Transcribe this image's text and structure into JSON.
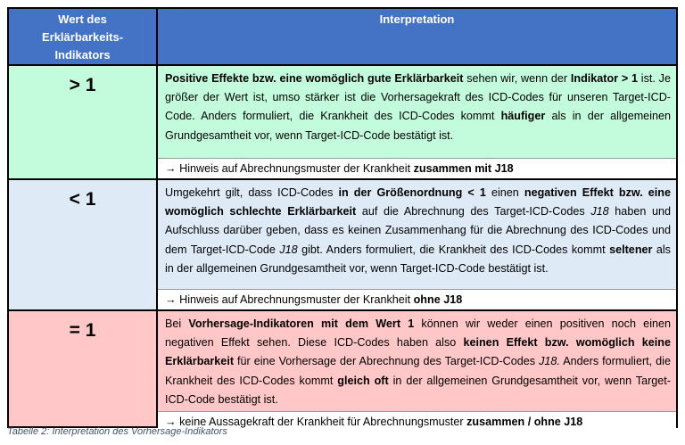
{
  "table": {
    "headers": [
      "Wert des Erklärbarkeits-Indikators",
      "Interpretation"
    ],
    "colors": {
      "header": "#4472C4",
      "positive": "#C3FCDC",
      "negative": "#DEEAF6",
      "neutral": "#FFC7C7"
    },
    "rows": [
      {
        "value": "> 1",
        "text": [
          {
            "t": "Positive Effekte bzw. eine womöglich gute Erklärbarkeit",
            "s": "b"
          },
          {
            "t": " sehen wir, wenn der ",
            "s": ""
          },
          {
            "t": "Indikator > 1",
            "s": "b"
          },
          {
            "t": " ist. Je größer der Wert ist, umso stärker ist die Vorhersagekraft des ICD-Codes für unseren Target-ICD-Code. Anders formuliert, die Krankheit des ICD-Codes kommt ",
            "s": ""
          },
          {
            "t": "häufiger",
            "s": "b"
          },
          {
            "t": " als in der allgemeinen Grundgesamtheit vor, wenn Target-ICD-Code bestätigt ist.",
            "s": ""
          }
        ],
        "note": [
          {
            "t": "→ Hinweis auf Abrechnungsmuster der Krankheit ",
            "s": ""
          },
          {
            "t": "zusammen mit J18",
            "s": "b"
          }
        ]
      },
      {
        "value": "< 1",
        "text": [
          {
            "t": "Umgekehrt gilt, dass ICD-Codes ",
            "s": ""
          },
          {
            "t": "in der Größenordnung < 1",
            "s": "b"
          },
          {
            "t": " einen ",
            "s": ""
          },
          {
            "t": "negativen Effekt bzw. eine womöglich schlechte Erklärbarkeit",
            "s": "b"
          },
          {
            "t": " auf die Abrechnung des Target-ICD-Codes ",
            "s": ""
          },
          {
            "t": "J18",
            "s": "i"
          },
          {
            "t": " haben und Aufschluss darüber geben, dass es keinen Zusammenhang für die Abrechnung des ICD-Codes und dem Target-ICD-Code ",
            "s": ""
          },
          {
            "t": "J18",
            "s": "i"
          },
          {
            "t": " gibt. Anders formuliert, die Krankheit des ICD-Codes kommt ",
            "s": ""
          },
          {
            "t": "seltener",
            "s": "b"
          },
          {
            "t": " als in der allgemeinen Grundgesamtheit vor, wenn Target-ICD-Code bestätigt ist.",
            "s": ""
          }
        ],
        "note": [
          {
            "t": "→ Hinweis auf Abrechnungsmuster der Krankheit ",
            "s": ""
          },
          {
            "t": "ohne J18",
            "s": "b"
          }
        ]
      },
      {
        "value": "= 1",
        "text": [
          {
            "t": "Bei ",
            "s": ""
          },
          {
            "t": "Vorhersage-Indikatoren mit dem Wert 1",
            "s": "b"
          },
          {
            "t": " können wir weder einen positiven noch einen negativen Effekt sehen. Diese ICD-Codes haben also ",
            "s": ""
          },
          {
            "t": "keinen Effekt bzw. womöglich keine Erklärbarkeit",
            "s": "b"
          },
          {
            "t": " für eine Vorhersage der Abrechnung des Target-ICD-Codes ",
            "s": ""
          },
          {
            "t": "J18.",
            "s": "i"
          },
          {
            "t": " Anders formuliert, die Krankheit des ICD-Codes kommt ",
            "s": ""
          },
          {
            "t": "gleich oft",
            "s": "b"
          },
          {
            "t": " in der allgemeinen Grundgesamtheit vor, wenn Target-ICD-Code bestätigt ist.",
            "s": ""
          }
        ],
        "note": [
          {
            "t": "→ keine Aussagekraft der Krankheit für Abrechnungsmuster ",
            "s": ""
          },
          {
            "t": "zusammen / ohne J18",
            "s": "b"
          }
        ]
      }
    ]
  },
  "caption": "Tabelle 2: Interpretation des Vorhersage-Indikators"
}
